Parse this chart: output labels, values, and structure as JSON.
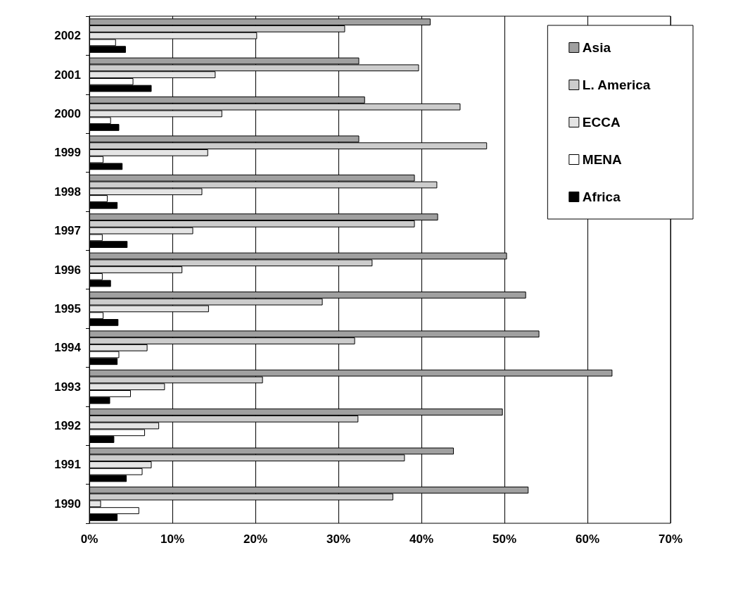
{
  "chart_data": {
    "type": "bar",
    "orientation": "horizontal",
    "categories": [
      "2002",
      "2001",
      "2000",
      "1999",
      "1998",
      "1997",
      "1996",
      "1995",
      "1994",
      "1993",
      "1992",
      "1991",
      "1990"
    ],
    "series": [
      {
        "name": "Asia",
        "color": "#a0a0a0",
        "values": [
          41.1,
          32.5,
          33.2,
          32.5,
          39.2,
          42.0,
          50.3,
          52.6,
          54.2,
          63.0,
          49.8,
          43.9,
          52.9
        ]
      },
      {
        "name": "L. America",
        "color": "#cccccc",
        "values": [
          30.8,
          39.7,
          44.7,
          47.9,
          41.9,
          39.2,
          34.1,
          28.1,
          32.0,
          20.9,
          32.4,
          38.0,
          36.6
        ]
      },
      {
        "name": "ECCA",
        "color": "#e4e4e4",
        "values": [
          20.2,
          15.2,
          16.0,
          14.3,
          13.6,
          12.5,
          11.2,
          14.4,
          7.0,
          9.1,
          8.4,
          7.5,
          1.4
        ]
      },
      {
        "name": "MENA",
        "color": "#ffffff",
        "values": [
          3.2,
          5.3,
          2.6,
          1.7,
          2.2,
          1.6,
          1.6,
          1.7,
          3.6,
          5.0,
          6.7,
          6.4,
          6.0
        ]
      },
      {
        "name": "Africa",
        "color": "#000000",
        "values": [
          4.4,
          7.5,
          3.6,
          4.0,
          3.4,
          4.6,
          2.6,
          3.5,
          3.4,
          2.5,
          3.0,
          4.5,
          3.4
        ]
      }
    ],
    "xlim": [
      0,
      70
    ],
    "xticks": [
      {
        "value": 0,
        "label": "0%"
      },
      {
        "value": 10,
        "label": "10%"
      },
      {
        "value": 20,
        "label": "20%"
      },
      {
        "value": 30,
        "label": "30%"
      },
      {
        "value": 40,
        "label": "40%"
      },
      {
        "value": 50,
        "label": "50%"
      },
      {
        "value": 60,
        "label": "60%"
      },
      {
        "value": 70,
        "label": "70%"
      }
    ],
    "grid": "x",
    "legend": "top right"
  }
}
